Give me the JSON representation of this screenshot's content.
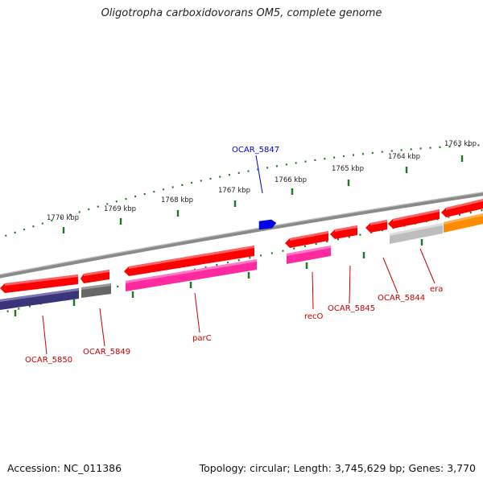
{
  "title": "Oligotropha carboxidovorans OM5, complete genome",
  "footer": {
    "accession": "Accession: NC_011386",
    "summary": "Topology: circular; Length: 3,745,629 bp; Genes: 3,770"
  },
  "scale_labels": [
    "1770 kbp",
    "1769 kbp",
    "1768 kbp",
    "1767 kbp",
    "1766 kbp",
    "1765 kbp",
    "1764 kbp",
    "1763 kbp"
  ],
  "gene_labels": {
    "ocar_5847": "OCAR_5847",
    "ocar_5850": "OCAR_5850",
    "ocar_5849": "OCAR_5849",
    "parc": "parC",
    "reco": "recO",
    "ocar_5845": "OCAR_5845",
    "ocar_5844": "OCAR_5844",
    "era": "era"
  },
  "colors": {
    "cds_red": "#ff0000",
    "gene_pink": "#ff2aa0",
    "gene_navy": "#3a3478",
    "gene_gray": "#666666",
    "gene_lightgray": "#bdbdbd",
    "gene_orange": "#ff8c00",
    "label_red": "#cc0000",
    "label_blue": "#0000cc",
    "backbone": "#888888",
    "ticks": "#1a7a1a"
  }
}
